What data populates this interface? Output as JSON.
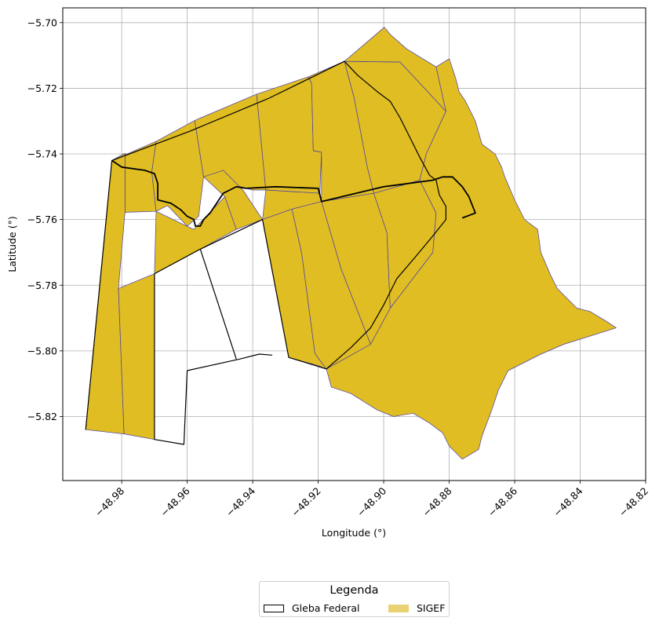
{
  "chart_data": {
    "type": "map",
    "xlabel": "Longitude (°)",
    "ylabel": "Latitude (°)",
    "xlim": [
      -48.998,
      -48.82
    ],
    "ylim": [
      -5.8395,
      -5.6955
    ],
    "x_ticks": [
      -48.98,
      -48.96,
      -48.94,
      -48.92,
      -48.9,
      -48.88,
      -48.86,
      -48.84,
      -48.82
    ],
    "x_tick_labels": [
      "−48.98",
      "−48.96",
      "−48.94",
      "−48.92",
      "−48.90",
      "−48.88",
      "−48.86",
      "−48.84",
      "−48.82"
    ],
    "y_ticks": [
      -5.7,
      -5.72,
      -5.74,
      -5.76,
      -5.78,
      -5.8,
      -5.82
    ],
    "y_tick_labels": [
      "−5.70",
      "−5.72",
      "−5.74",
      "−5.76",
      "−5.78",
      "−5.80",
      "−5.82"
    ],
    "grid": true,
    "legend_placement": "bottom-center, below plot",
    "colors": {
      "sigef_fill": "#e0bd22",
      "sigef_edge": "#4b3fa8",
      "gleba_edge": "#000000",
      "grid": "#b0b0b0"
    },
    "legend": {
      "title": "Legenda",
      "items": [
        {
          "label": "Gleba Federal",
          "style": "outline"
        },
        {
          "label": "SIGEF",
          "style": "fill"
        }
      ]
    },
    "layers": {
      "sigef_polygons": [
        [
          [
            -48.983,
            -5.742
          ],
          [
            -48.979,
            -5.7398
          ],
          [
            -48.979,
            -5.7578
          ],
          [
            -48.9695,
            -5.7575
          ],
          [
            -48.9708,
            -5.7455
          ],
          [
            -48.9695,
            -5.7362
          ],
          [
            -48.983,
            -5.742
          ]
        ],
        [
          [
            -48.983,
            -5.742
          ],
          [
            -48.979,
            -5.7398
          ],
          [
            -48.979,
            -5.7578
          ],
          [
            -48.981,
            -5.781
          ],
          [
            -48.9793,
            -5.8253
          ],
          [
            -48.991,
            -5.824
          ],
          [
            -48.983,
            -5.742
          ]
        ],
        [
          [
            -48.981,
            -5.781
          ],
          [
            -48.9793,
            -5.8253
          ],
          [
            -48.97,
            -5.827
          ],
          [
            -48.97,
            -5.7765
          ],
          [
            -48.981,
            -5.781
          ]
        ],
        [
          [
            -48.9695,
            -5.7575
          ],
          [
            -48.9708,
            -5.7455
          ],
          [
            -48.9695,
            -5.7362
          ],
          [
            -48.9577,
            -5.7298
          ],
          [
            -48.955,
            -5.747
          ],
          [
            -48.9565,
            -5.759
          ],
          [
            -48.96,
            -5.762
          ],
          [
            -48.966,
            -5.7557
          ],
          [
            -48.9695,
            -5.7575
          ],
          [
            -48.97,
            -5.7765
          ],
          [
            -48.956,
            -5.769
          ],
          [
            -48.9505,
            -5.766
          ],
          [
            -48.945,
            -5.763
          ],
          [
            -48.9485,
            -5.753
          ],
          [
            -48.958,
            -5.763
          ],
          [
            -48.9695,
            -5.7575
          ]
        ],
        [
          [
            -48.9577,
            -5.7298
          ],
          [
            -48.9388,
            -5.7218
          ],
          [
            -48.936,
            -5.751
          ],
          [
            -48.94,
            -5.751
          ],
          [
            -48.955,
            -5.747
          ],
          [
            -48.9577,
            -5.7298
          ]
        ],
        [
          [
            -48.955,
            -5.747
          ],
          [
            -48.949,
            -5.745
          ],
          [
            -48.943,
            -5.751
          ],
          [
            -48.937,
            -5.76
          ],
          [
            -48.945,
            -5.763
          ],
          [
            -48.9485,
            -5.753
          ],
          [
            -48.955,
            -5.747
          ]
        ],
        [
          [
            -48.9388,
            -5.7218
          ],
          [
            -48.923,
            -5.7165
          ],
          [
            -48.922,
            -5.7185
          ],
          [
            -48.9215,
            -5.739
          ],
          [
            -48.919,
            -5.7395
          ],
          [
            -48.9195,
            -5.752
          ],
          [
            -48.936,
            -5.751
          ],
          [
            -48.9388,
            -5.7218
          ]
        ],
        [
          [
            -48.923,
            -5.7165
          ],
          [
            -48.912,
            -5.7118
          ],
          [
            -48.909,
            -5.723
          ],
          [
            -48.905,
            -5.744
          ],
          [
            -48.903,
            -5.752
          ],
          [
            -48.919,
            -5.7545
          ],
          [
            -48.919,
            -5.7395
          ],
          [
            -48.9215,
            -5.739
          ],
          [
            -48.922,
            -5.7185
          ],
          [
            -48.923,
            -5.7165
          ]
        ],
        [
          [
            -48.936,
            -5.751
          ],
          [
            -48.9195,
            -5.752
          ],
          [
            -48.919,
            -5.7545
          ],
          [
            -48.928,
            -5.7568
          ],
          [
            -48.937,
            -5.76
          ],
          [
            -48.936,
            -5.751
          ]
        ],
        [
          [
            -48.937,
            -5.76
          ],
          [
            -48.928,
            -5.7568
          ],
          [
            -48.925,
            -5.7705
          ],
          [
            -48.921,
            -5.8008
          ],
          [
            -48.9175,
            -5.8055
          ],
          [
            -48.92,
            -5.8045
          ],
          [
            -48.929,
            -5.802
          ],
          [
            -48.937,
            -5.76
          ]
        ],
        [
          [
            -48.928,
            -5.7568
          ],
          [
            -48.919,
            -5.7545
          ],
          [
            -48.913,
            -5.775
          ],
          [
            -48.904,
            -5.798
          ],
          [
            -48.9175,
            -5.8055
          ],
          [
            -48.921,
            -5.8008
          ],
          [
            -48.925,
            -5.7705
          ],
          [
            -48.928,
            -5.7568
          ]
        ],
        [
          [
            -48.919,
            -5.7545
          ],
          [
            -48.903,
            -5.752
          ],
          [
            -48.899,
            -5.764
          ],
          [
            -48.898,
            -5.787
          ],
          [
            -48.904,
            -5.798
          ],
          [
            -48.913,
            -5.775
          ],
          [
            -48.919,
            -5.7545
          ]
        ],
        [
          [
            -48.903,
            -5.752
          ],
          [
            -48.889,
            -5.748
          ],
          [
            -48.884,
            -5.758
          ],
          [
            -48.885,
            -5.77
          ],
          [
            -48.898,
            -5.787
          ],
          [
            -48.899,
            -5.764
          ],
          [
            -48.903,
            -5.752
          ]
        ],
        [
          [
            -48.909,
            -5.723
          ],
          [
            -48.912,
            -5.7118
          ],
          [
            -48.895,
            -5.712
          ],
          [
            -48.881,
            -5.727
          ],
          [
            -48.887,
            -5.74
          ],
          [
            -48.889,
            -5.748
          ],
          [
            -48.903,
            -5.752
          ],
          [
            -48.905,
            -5.744
          ],
          [
            -48.909,
            -5.723
          ]
        ],
        [
          [
            -48.912,
            -5.7118
          ],
          [
            -48.8998,
            -5.7014
          ],
          [
            -48.898,
            -5.7036
          ],
          [
            -48.893,
            -5.708
          ],
          [
            -48.884,
            -5.7135
          ],
          [
            -48.881,
            -5.727
          ],
          [
            -48.895,
            -5.712
          ],
          [
            -48.912,
            -5.7118
          ]
        ],
        [
          [
            -48.884,
            -5.7135
          ],
          [
            -48.88,
            -5.711
          ],
          [
            -48.878,
            -5.717
          ],
          [
            -48.877,
            -5.721
          ],
          [
            -48.875,
            -5.724
          ],
          [
            -48.872,
            -5.73
          ],
          [
            -48.87,
            -5.737
          ],
          [
            -48.866,
            -5.74
          ],
          [
            -48.864,
            -5.744
          ],
          [
            -48.863,
            -5.747
          ],
          [
            -48.86,
            -5.754
          ],
          [
            -48.857,
            -5.76
          ],
          [
            -48.853,
            -5.763
          ],
          [
            -48.852,
            -5.77
          ],
          [
            -48.849,
            -5.777
          ],
          [
            -48.847,
            -5.781
          ],
          [
            -48.844,
            -5.784
          ],
          [
            -48.841,
            -5.787
          ],
          [
            -48.837,
            -5.788
          ],
          [
            -48.832,
            -5.791
          ],
          [
            -48.829,
            -5.793
          ],
          [
            -48.845,
            -5.798
          ],
          [
            -48.852,
            -5.801
          ],
          [
            -48.862,
            -5.806
          ],
          [
            -48.865,
            -5.812
          ],
          [
            -48.867,
            -5.818
          ],
          [
            -48.87,
            -5.826
          ],
          [
            -48.871,
            -5.83
          ],
          [
            -48.876,
            -5.833
          ],
          [
            -48.88,
            -5.829
          ],
          [
            -48.882,
            -5.825
          ],
          [
            -48.886,
            -5.822
          ],
          [
            -48.891,
            -5.819
          ],
          [
            -48.897,
            -5.82
          ],
          [
            -48.902,
            -5.818
          ],
          [
            -48.91,
            -5.813
          ],
          [
            -48.916,
            -5.811
          ],
          [
            -48.9175,
            -5.8055
          ],
          [
            -48.904,
            -5.798
          ],
          [
            -48.898,
            -5.787
          ],
          [
            -48.885,
            -5.77
          ],
          [
            -48.884,
            -5.758
          ],
          [
            -48.889,
            -5.748
          ],
          [
            -48.887,
            -5.74
          ],
          [
            -48.881,
            -5.727
          ],
          [
            -48.884,
            -5.7135
          ]
        ]
      ],
      "gleba_outlines": [
        [
          [
            -48.991,
            -5.824
          ],
          [
            -48.983,
            -5.742
          ],
          [
            -48.959,
            -5.733
          ],
          [
            -48.935,
            -5.723
          ],
          [
            -48.912,
            -5.7118
          ],
          [
            -48.908,
            -5.716
          ],
          [
            -48.902,
            -5.721
          ],
          [
            -48.898,
            -5.724
          ],
          [
            -48.895,
            -5.729
          ],
          [
            -48.892,
            -5.735
          ],
          [
            -48.889,
            -5.741
          ],
          [
            -48.886,
            -5.7465
          ],
          [
            -48.884,
            -5.748
          ],
          [
            -48.883,
            -5.7525
          ],
          [
            -48.881,
            -5.756
          ],
          [
            -48.881,
            -5.76
          ],
          [
            -48.885,
            -5.765
          ],
          [
            -48.89,
            -5.771
          ],
          [
            -48.896,
            -5.778
          ],
          [
            -48.9,
            -5.786
          ],
          [
            -48.904,
            -5.793
          ],
          [
            -48.91,
            -5.799
          ],
          [
            -48.9175,
            -5.8055
          ],
          [
            -48.929,
            -5.802
          ],
          [
            -48.937,
            -5.76
          ],
          [
            -48.956,
            -5.769
          ],
          [
            -48.97,
            -5.7765
          ],
          [
            -48.97,
            -5.827
          ],
          [
            -48.961,
            -5.8285
          ],
          [
            -48.96,
            -5.806
          ],
          [
            -48.944,
            -5.8025
          ],
          [
            -48.938,
            -5.801
          ],
          [
            -48.934,
            -5.8013
          ]
        ],
        [
          [
            -48.956,
            -5.769
          ],
          [
            -48.945,
            -5.8025
          ]
        ],
        [
          [
            -48.983,
            -5.742
          ],
          [
            -48.98,
            -5.744
          ],
          [
            -48.973,
            -5.745
          ],
          [
            -48.97,
            -5.746
          ],
          [
            -48.969,
            -5.749
          ],
          [
            -48.969,
            -5.754
          ],
          [
            -48.965,
            -5.755
          ],
          [
            -48.962,
            -5.757
          ],
          [
            -48.96,
            -5.759
          ],
          [
            -48.958,
            -5.76
          ],
          [
            -48.9575,
            -5.762
          ],
          [
            -48.956,
            -5.762
          ],
          [
            -48.955,
            -5.76
          ],
          [
            -48.953,
            -5.758
          ],
          [
            -48.951,
            -5.755
          ],
          [
            -48.949,
            -5.752
          ],
          [
            -48.947,
            -5.751
          ],
          [
            -48.945,
            -5.75
          ],
          [
            -48.942,
            -5.7505
          ],
          [
            -48.933,
            -5.75
          ],
          [
            -48.92,
            -5.7505
          ],
          [
            -48.919,
            -5.7545
          ],
          [
            -48.9,
            -5.75
          ],
          [
            -48.885,
            -5.748
          ],
          [
            -48.882,
            -5.747
          ],
          [
            -48.879,
            -5.747
          ],
          [
            -48.876,
            -5.75
          ],
          [
            -48.874,
            -5.753
          ],
          [
            -48.872,
            -5.758
          ],
          [
            -48.876,
            -5.7595
          ]
        ]
      ]
    }
  }
}
